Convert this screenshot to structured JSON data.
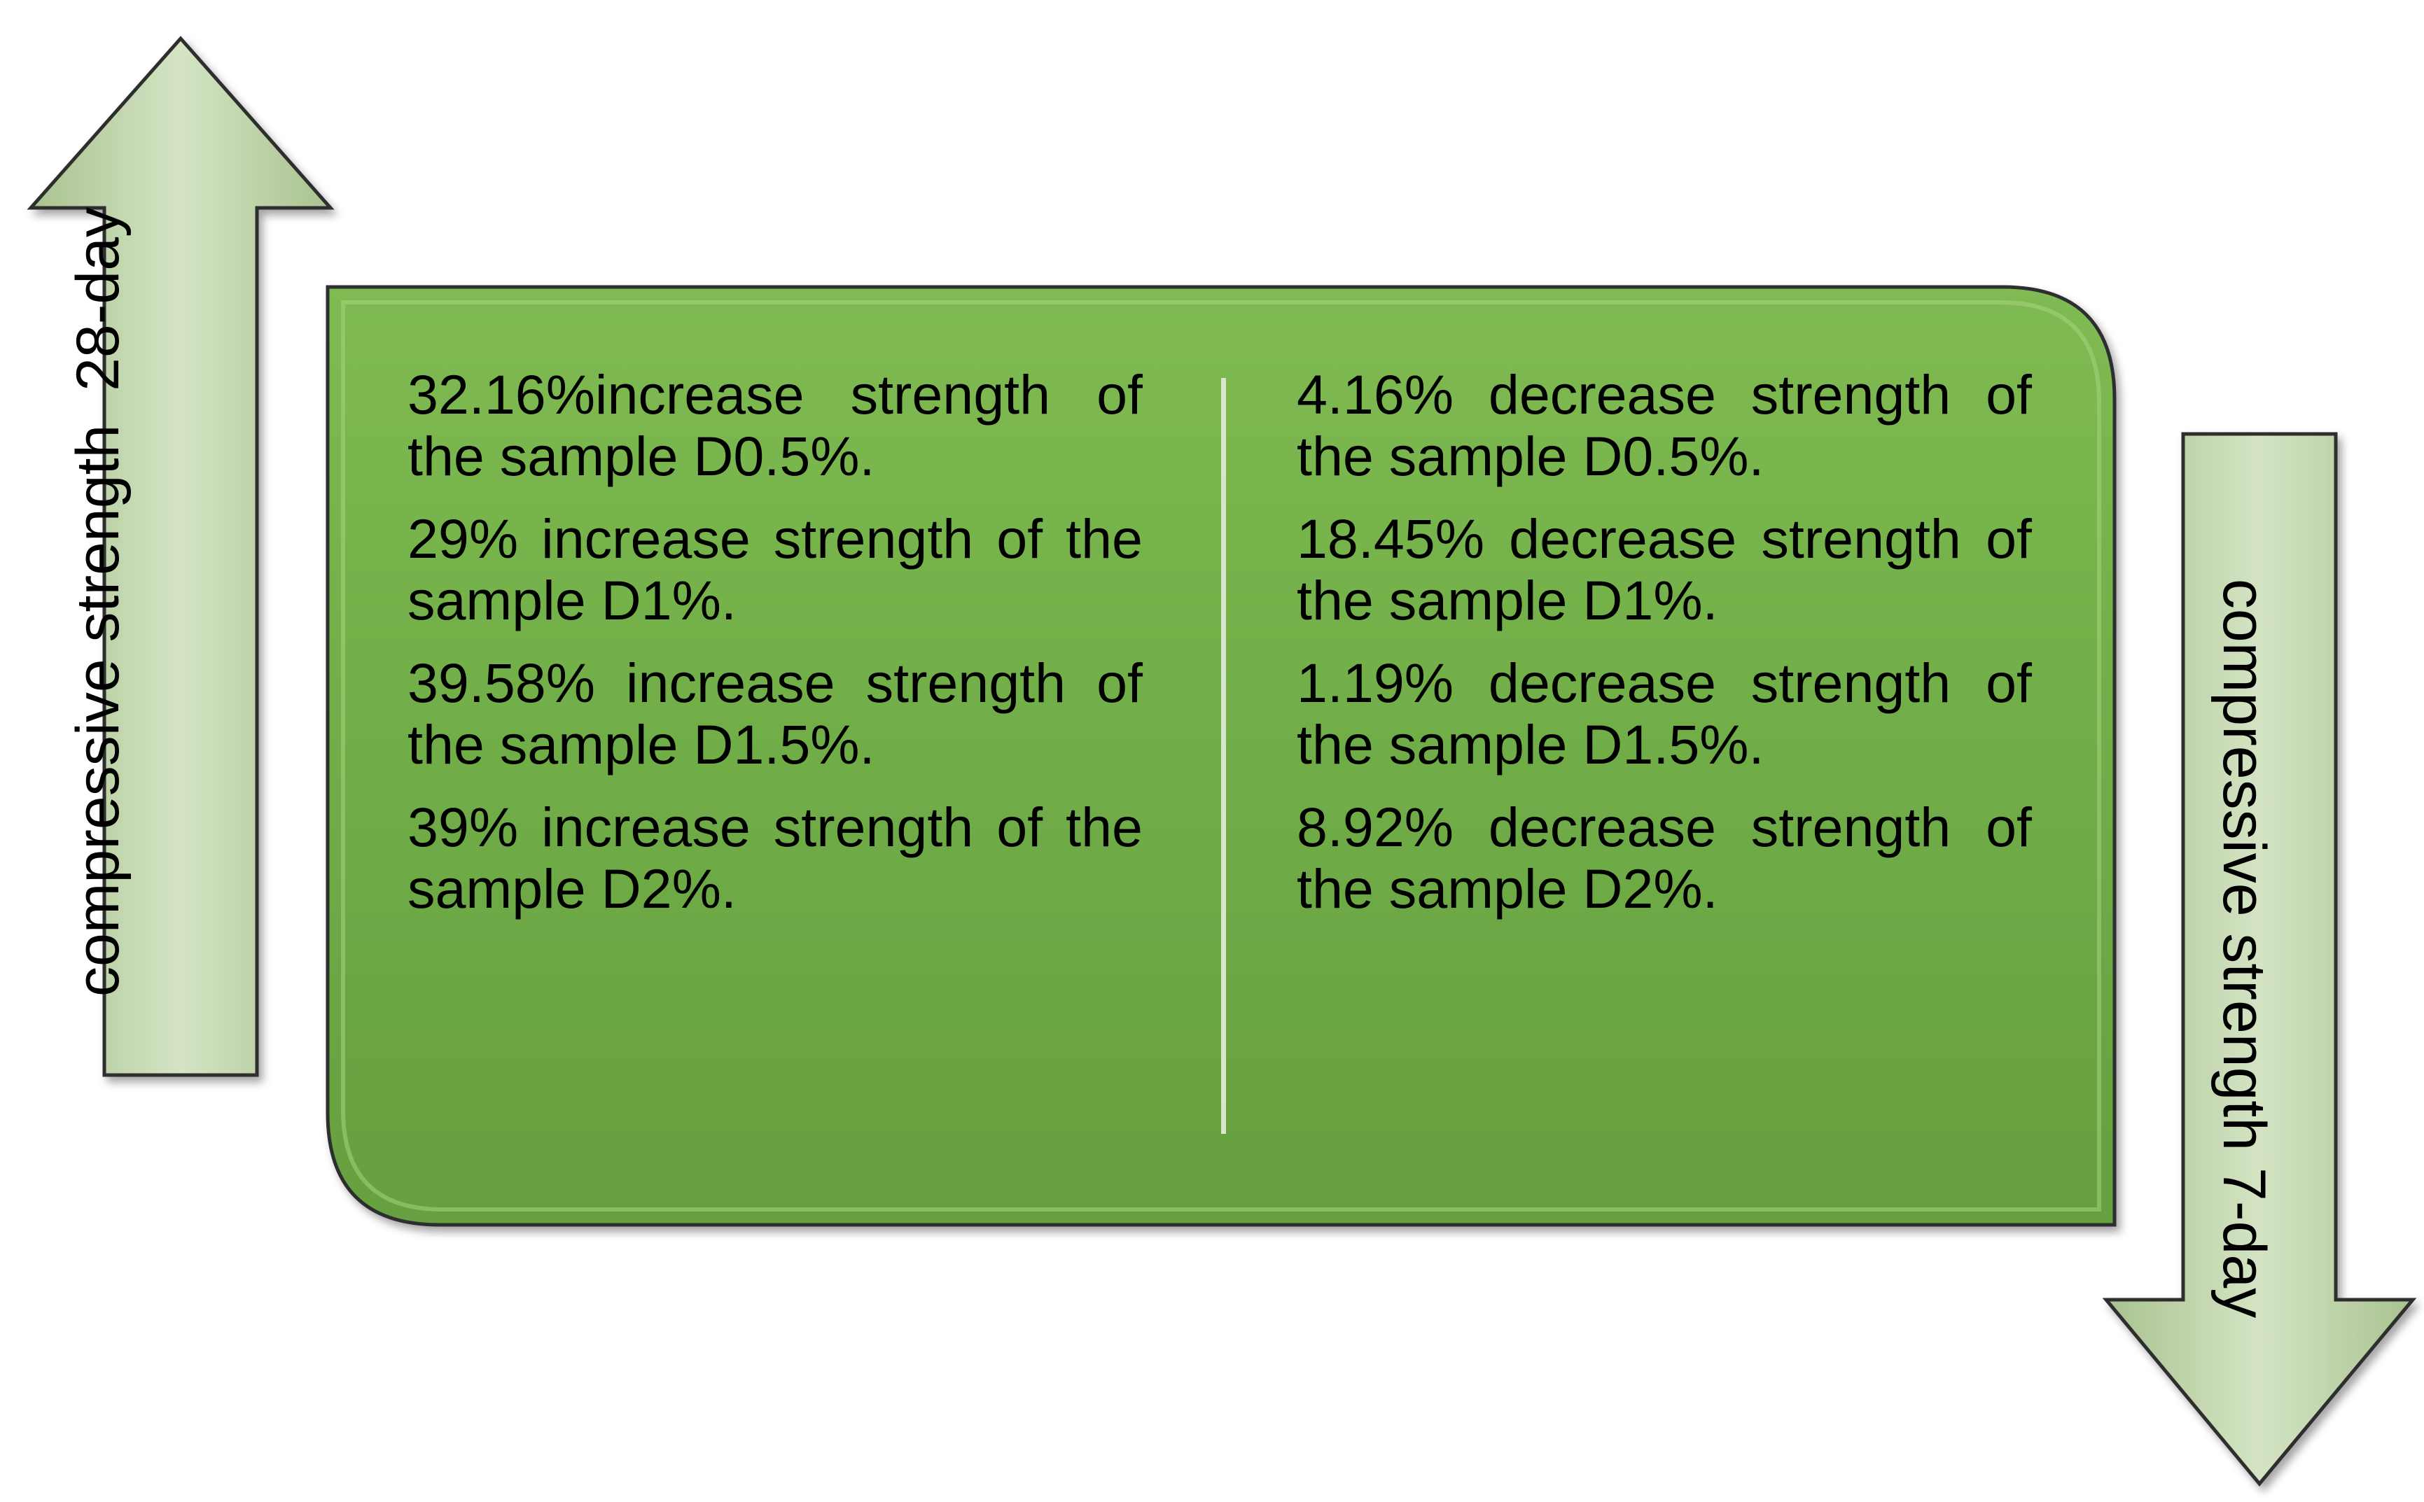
{
  "left_arrow": {
    "label": "compressive strength  28-day",
    "direction": "up",
    "fill_color": "#c3d6b0"
  },
  "right_arrow": {
    "label": "compressive strength 7-day",
    "direction": "down",
    "fill_color": "#c3d6b0"
  },
  "panel": {
    "fill_color": "#70ad47",
    "left_column": {
      "items": [
        "32.16%increase  strength of the sample D0.5%.",
        "29% increase  strength of the sample D1%.",
        "39.58% increase strength of the sample D1.5%.",
        "39% increase strength of the sample D2%."
      ]
    },
    "right_column": {
      "items": [
        "4.16% decrease strength of the sample D0.5%.",
        "18.45% decrease  strength of the sample D1%.",
        "1.19% decrease strength of the sample D1.5%.",
        "8.92% decrease strength of the sample D2%."
      ]
    }
  }
}
